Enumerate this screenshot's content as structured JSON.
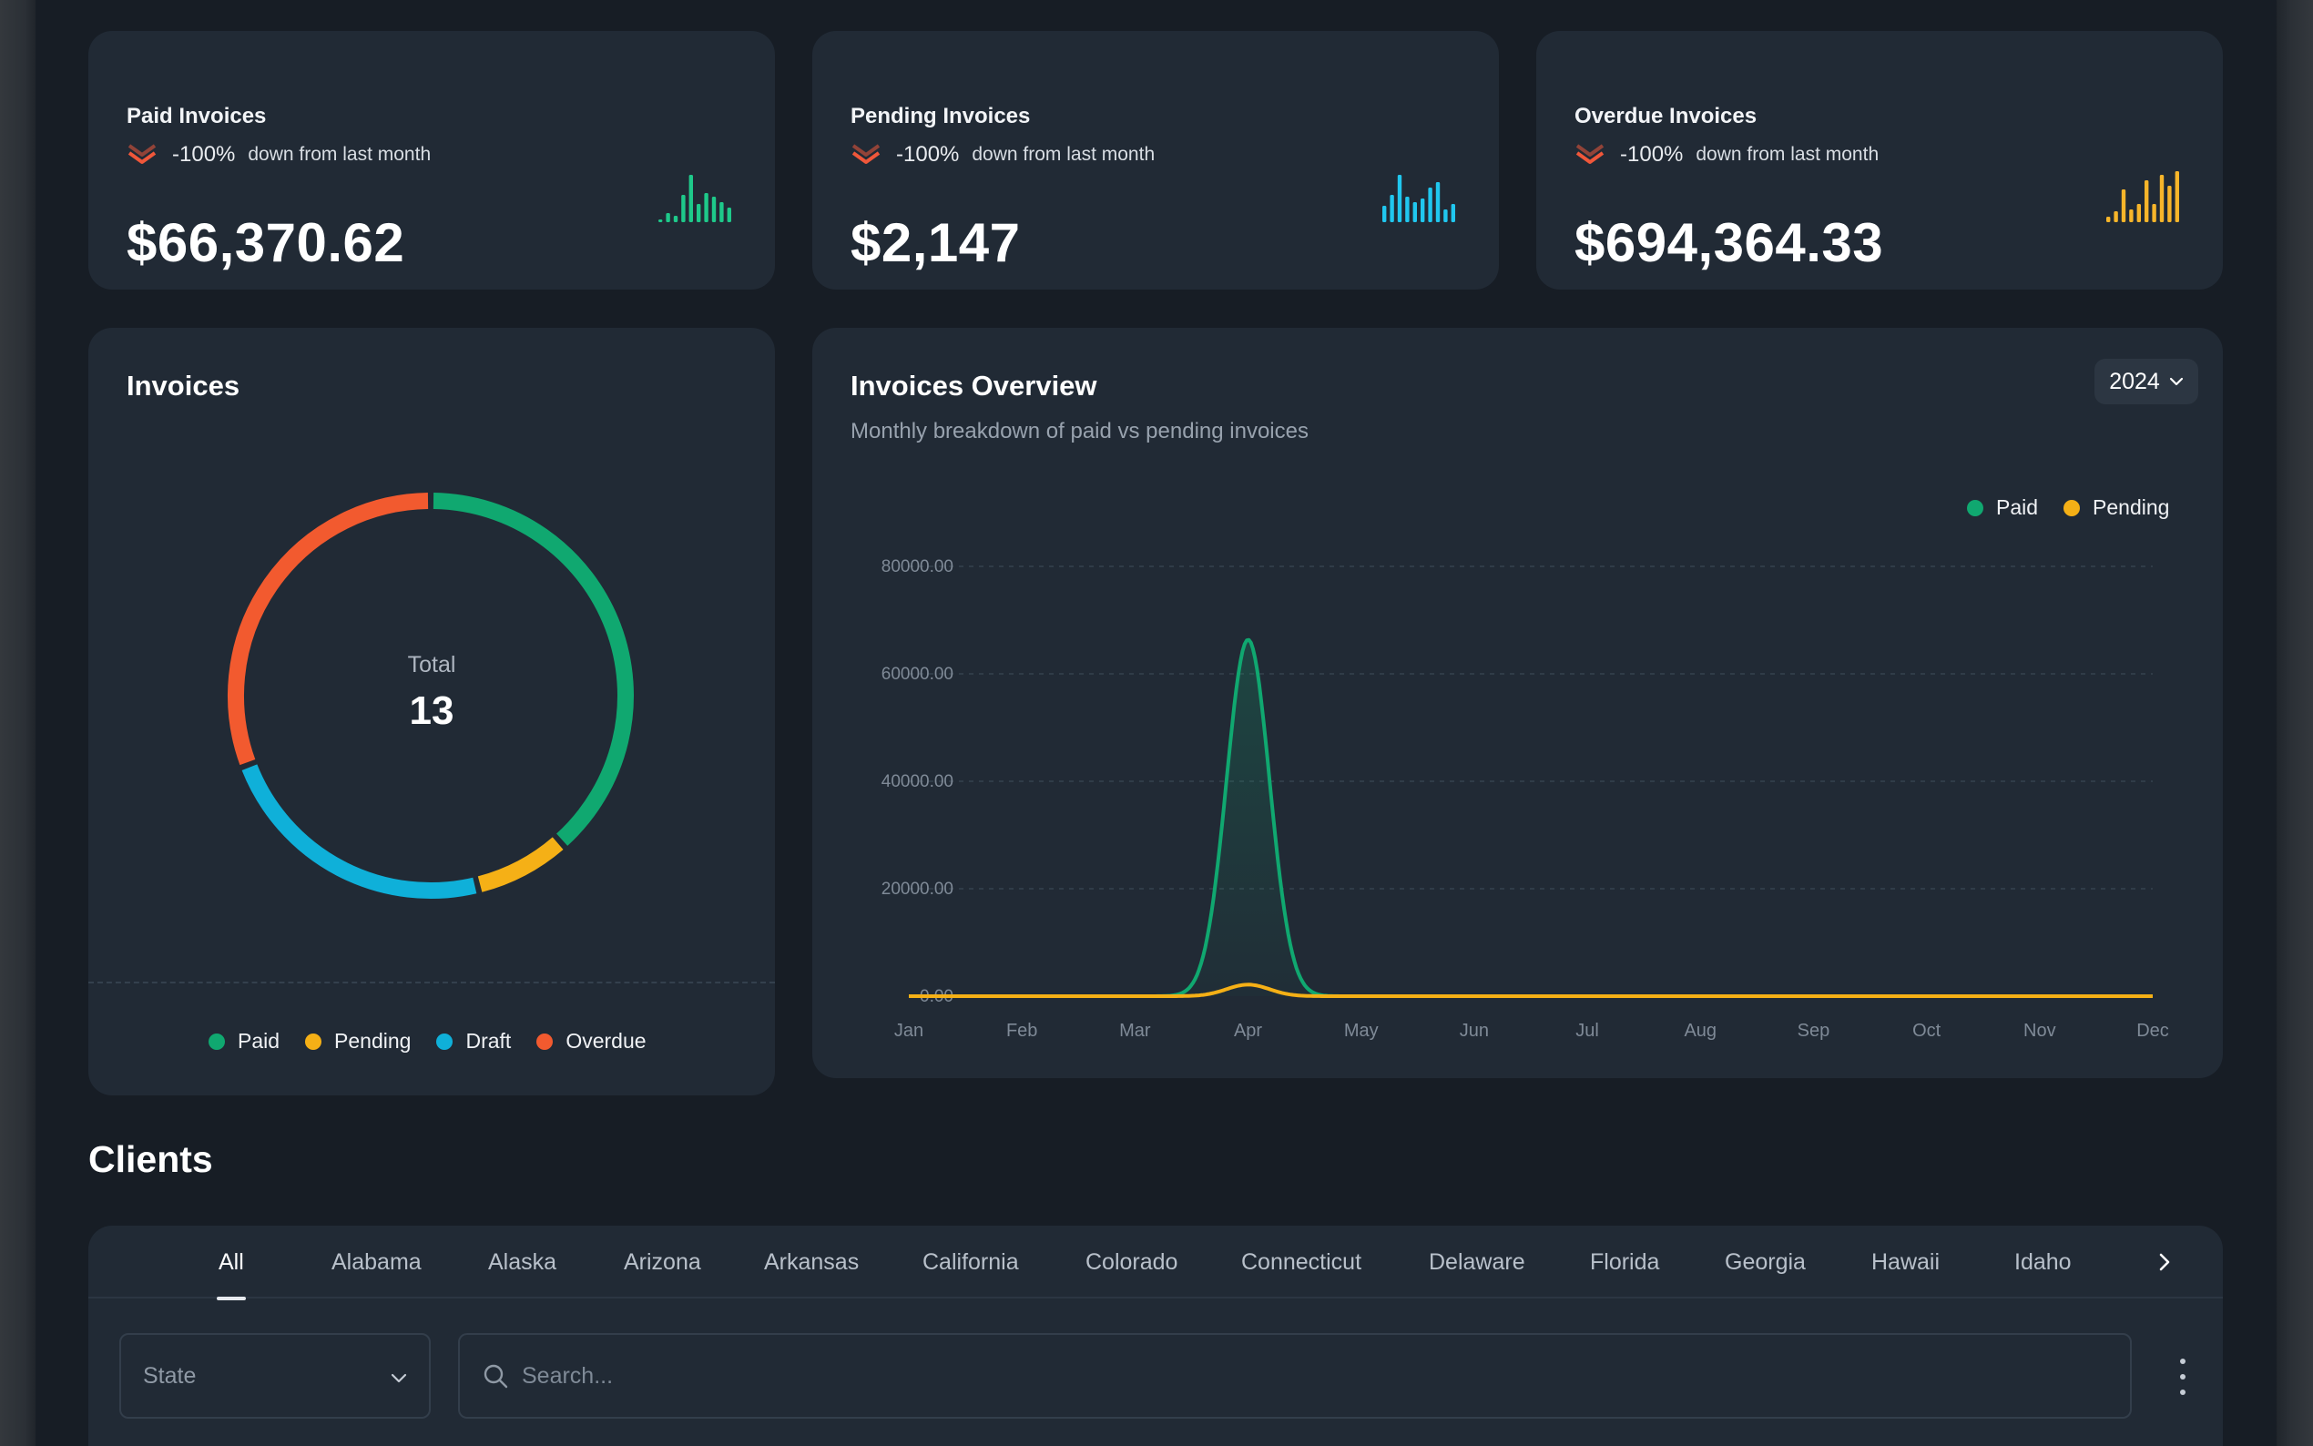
{
  "colors": {
    "paid": "#10a870",
    "pending": "#f5b016",
    "draft": "#0fb0d9",
    "overdue": "#f25a2f",
    "down_arrow": "#f0573a",
    "spark_paid": "#1ec98a",
    "spark_pending": "#20c7ef",
    "spark_overdue": "#f7b52a"
  },
  "stats": [
    {
      "title": "Paid Invoices",
      "trend_pct": "-100%",
      "trend_note": "down from last month",
      "value": "$66,370.62",
      "trend_icon": "double-chevron-down-icon",
      "spark_icon": "bar-sparkline-icon"
    },
    {
      "title": "Pending Invoices",
      "trend_pct": "-100%",
      "trend_note": "down from last month",
      "value": "$2,147",
      "trend_icon": "double-chevron-down-icon",
      "spark_icon": "bar-sparkline-icon"
    },
    {
      "title": "Overdue Invoices",
      "trend_pct": "-100%",
      "trend_note": "down from last month",
      "value": "$694,364.33",
      "trend_icon": "double-chevron-down-icon",
      "spark_icon": "bar-sparkline-icon"
    }
  ],
  "invoices_card": {
    "title": "Invoices",
    "total_label": "Total",
    "total_value": "13",
    "legend": [
      "Paid",
      "Pending",
      "Draft",
      "Overdue"
    ]
  },
  "overview": {
    "title": "Invoices Overview",
    "subtitle": "Monthly breakdown of paid vs pending invoices",
    "year": "2024",
    "legend": [
      "Paid",
      "Pending"
    ]
  },
  "chart_data": [
    {
      "type": "pie",
      "variant": "donut",
      "categories": [
        "Paid",
        "Pending",
        "Draft",
        "Overdue"
      ],
      "values": [
        5,
        1,
        3,
        4
      ],
      "center_label": "Total",
      "center_value": "13",
      "legend_position": "bottom"
    },
    {
      "type": "area",
      "categories": [
        "Jan",
        "Feb",
        "Mar",
        "Apr",
        "May",
        "Jun",
        "Jul",
        "Aug",
        "Sep",
        "Oct",
        "Nov",
        "Dec"
      ],
      "series": [
        {
          "name": "Paid",
          "values": [
            0,
            0,
            0,
            66370.62,
            0,
            0,
            0,
            0,
            0,
            0,
            0,
            0
          ]
        },
        {
          "name": "Pending",
          "values": [
            0,
            0,
            0,
            2147,
            0,
            0,
            0,
            0,
            0,
            0,
            0,
            0
          ]
        }
      ],
      "yticks": [
        "80000.00",
        "60000.00",
        "40000.00",
        "20000.00",
        "0.00"
      ],
      "ylim": [
        0,
        80000
      ],
      "grid": true,
      "legend_position": "top-right"
    }
  ],
  "clients": {
    "title": "Clients",
    "tabs": [
      "All",
      "Alabama",
      "Alaska",
      "Arizona",
      "Arkansas",
      "California",
      "Colorado",
      "Connecticut",
      "Delaware",
      "Florida",
      "Georgia",
      "Hawaii",
      "Idaho"
    ],
    "active_tab": "All",
    "state_placeholder": "State",
    "search_placeholder": "Search..."
  }
}
